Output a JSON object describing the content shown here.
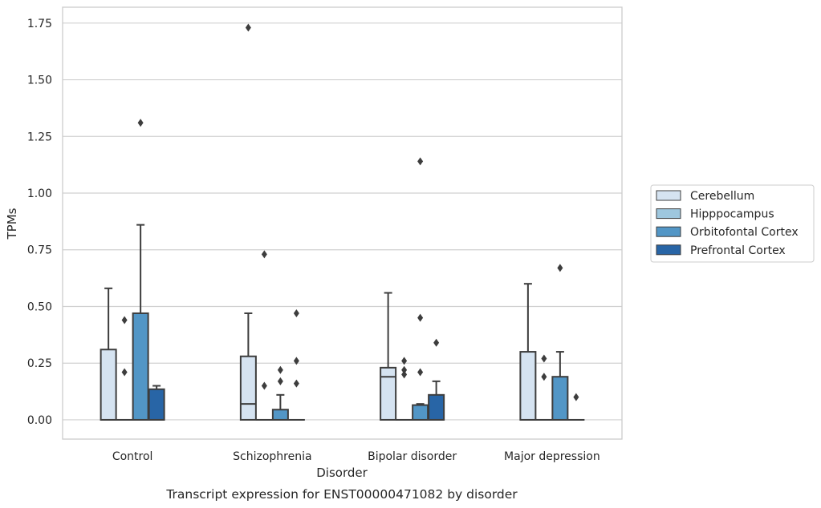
{
  "chart_data": {
    "type": "boxplot",
    "caption": "Transcript expression for ENST00000471082 by disorder",
    "xlabel": "Disorder",
    "ylabel": "TPMs",
    "ylim": [
      -0.085,
      1.82
    ],
    "yticks": [
      0.0,
      0.25,
      0.5,
      0.75,
      1.0,
      1.25,
      1.5,
      1.75
    ],
    "ytick_labels": [
      "0.00",
      "0.25",
      "0.50",
      "0.75",
      "1.00",
      "1.25",
      "1.50",
      "1.75"
    ],
    "grid": "horizontal",
    "legend_position": "right",
    "categories": [
      "Control",
      "Schizophrenia",
      "Bipolar disorder",
      "Major depression"
    ],
    "series": [
      {
        "name": "Cerebellum",
        "color": "#d5e3f1",
        "boxes": [
          {
            "q1": 0.0,
            "median": 0.0,
            "q3": 0.31,
            "whisker_low": 0.0,
            "whisker_high": 0.58,
            "outliers": []
          },
          {
            "q1": 0.0,
            "median": 0.07,
            "q3": 0.28,
            "whisker_low": 0.0,
            "whisker_high": 0.47,
            "outliers": [
              1.73
            ]
          },
          {
            "q1": 0.0,
            "median": 0.19,
            "q3": 0.23,
            "whisker_low": 0.0,
            "whisker_high": 0.56,
            "outliers": []
          },
          {
            "q1": 0.0,
            "median": 0.0,
            "q3": 0.3,
            "whisker_low": 0.0,
            "whisker_high": 0.6,
            "outliers": []
          }
        ]
      },
      {
        "name": "Hipppocampus",
        "color": "#9ec7de",
        "boxes": [
          {
            "q1": 0.0,
            "median": 0.0,
            "q3": 0.0,
            "whisker_low": 0.0,
            "whisker_high": 0.0,
            "outliers": [
              0.21,
              0.44
            ]
          },
          {
            "q1": 0.0,
            "median": 0.0,
            "q3": 0.0,
            "whisker_low": 0.0,
            "whisker_high": 0.0,
            "outliers": [
              0.15,
              0.73
            ]
          },
          {
            "q1": 0.0,
            "median": 0.0,
            "q3": 0.0,
            "whisker_low": 0.0,
            "whisker_high": 0.0,
            "outliers": [
              0.2,
              0.22,
              0.26
            ]
          },
          {
            "q1": 0.0,
            "median": 0.0,
            "q3": 0.0,
            "whisker_low": 0.0,
            "whisker_high": 0.0,
            "outliers": [
              0.19,
              0.27
            ]
          }
        ]
      },
      {
        "name": "Orbitofontal Cortex",
        "color": "#5296c6",
        "boxes": [
          {
            "q1": 0.0,
            "median": 0.0,
            "q3": 0.47,
            "whisker_low": 0.0,
            "whisker_high": 0.86,
            "outliers": [
              1.31
            ]
          },
          {
            "q1": 0.0,
            "median": 0.0,
            "q3": 0.045,
            "whisker_low": 0.0,
            "whisker_high": 0.11,
            "outliers": [
              0.17,
              0.22
            ]
          },
          {
            "q1": 0.0,
            "median": 0.0,
            "q3": 0.065,
            "whisker_low": 0.0,
            "whisker_high": 0.07,
            "outliers": [
              0.21,
              0.45,
              1.14
            ]
          },
          {
            "q1": 0.0,
            "median": 0.0,
            "q3": 0.19,
            "whisker_low": 0.0,
            "whisker_high": 0.3,
            "outliers": [
              0.67
            ]
          }
        ]
      },
      {
        "name": "Prefrontal Cortex",
        "color": "#2865a6",
        "boxes": [
          {
            "q1": 0.0,
            "median": 0.0,
            "q3": 0.135,
            "whisker_low": 0.0,
            "whisker_high": 0.15,
            "outliers": []
          },
          {
            "q1": 0.0,
            "median": 0.0,
            "q3": 0.0,
            "whisker_low": 0.0,
            "whisker_high": 0.0,
            "outliers": [
              0.16,
              0.26,
              0.47
            ]
          },
          {
            "q1": 0.0,
            "median": 0.0,
            "q3": 0.11,
            "whisker_low": 0.0,
            "whisker_high": 0.17,
            "outliers": [
              0.34
            ]
          },
          {
            "q1": 0.0,
            "median": 0.0,
            "q3": 0.0,
            "whisker_low": 0.0,
            "whisker_high": 0.0,
            "outliers": [
              0.1
            ]
          }
        ]
      }
    ]
  }
}
